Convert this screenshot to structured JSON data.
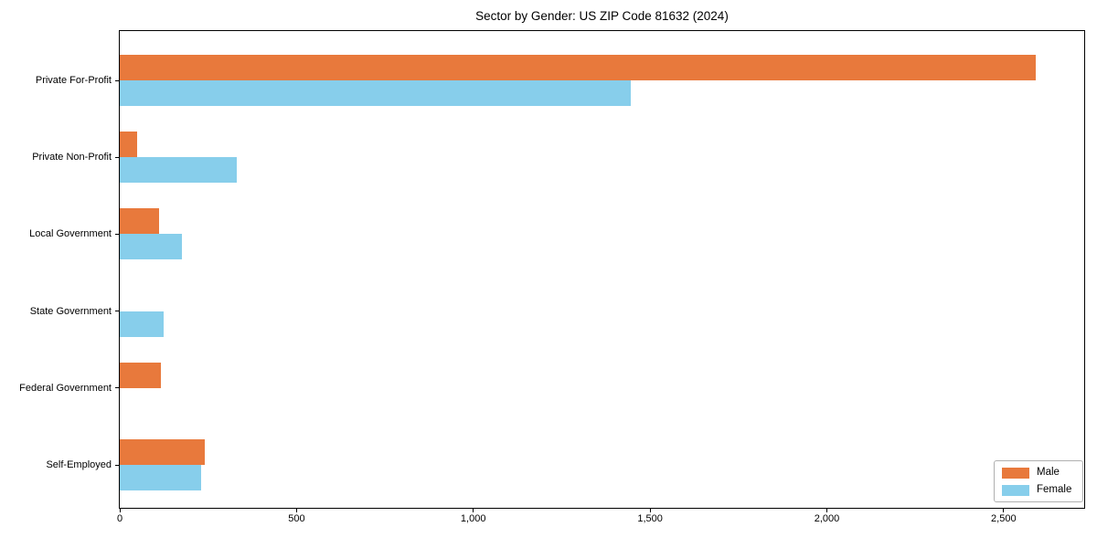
{
  "figure": {
    "background": "#ffffff",
    "spine_color": "#000000",
    "text_color": "#000000"
  },
  "chart_data": {
    "type": "bar",
    "orientation": "horizontal",
    "title": "Sector by Gender: US ZIP Code 81632 (2024)",
    "categories": [
      "Private For-Profit",
      "Private Non-Profit",
      "Local Government",
      "State Government",
      "Federal Government",
      "Self-Employed"
    ],
    "series": [
      {
        "name": "Male",
        "color": "#E8793C",
        "values": [
          2590,
          50,
          110,
          0,
          115,
          240
        ]
      },
      {
        "name": "Female",
        "color": "#87CEEB",
        "values": [
          1445,
          330,
          175,
          125,
          0,
          230
        ]
      }
    ],
    "xlabel": "",
    "ylabel": "",
    "xlim": [
      0,
      2728
    ],
    "xticks": [
      0,
      500,
      1000,
      1500,
      2000,
      2500
    ],
    "xtick_labels": [
      "0",
      "500",
      "1,000",
      "1,500",
      "2,000",
      "2,500"
    ],
    "grid": false,
    "legend": {
      "position": "lower right",
      "entries": [
        "Male",
        "Female"
      ]
    }
  }
}
